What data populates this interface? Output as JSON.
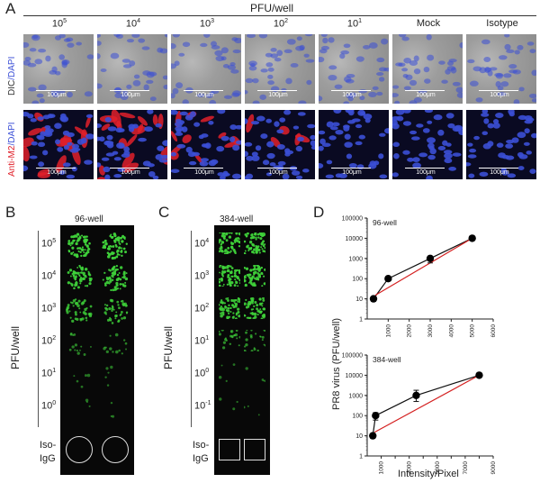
{
  "panel_a": {
    "letter": "A",
    "header": "PFU/well",
    "columns": [
      "10^5",
      "10^4",
      "10^3",
      "10^2",
      "10^1",
      "Mock",
      "Isotype"
    ],
    "columns_display": [
      {
        "base": "10",
        "exp": "5"
      },
      {
        "base": "10",
        "exp": "4"
      },
      {
        "base": "10",
        "exp": "3"
      },
      {
        "base": "10",
        "exp": "2"
      },
      {
        "base": "10",
        "exp": "1"
      },
      {
        "base": "Mock",
        "exp": ""
      },
      {
        "base": "Isotype",
        "exp": ""
      }
    ],
    "row1_label_a": "DIC",
    "row1_label_b": "/DAPI",
    "row2_label_a": "Anti-M2",
    "row2_label_b": "/DAPI",
    "scale_label": "100μm",
    "colors": {
      "dapi": "#3b4fd6",
      "m2": "#e0202a",
      "dic_bg": "#9a9a9a"
    }
  },
  "panel_b": {
    "letter": "B",
    "plate": "96-well",
    "ylabel": "PFU/well",
    "rows": [
      {
        "base": "10",
        "exp": "5"
      },
      {
        "base": "10",
        "exp": "4"
      },
      {
        "base": "10",
        "exp": "3"
      },
      {
        "base": "10",
        "exp": "2"
      },
      {
        "base": "10",
        "exp": "1"
      },
      {
        "base": "10",
        "exp": "0"
      }
    ],
    "control_a": "Iso-",
    "control_b": "IgG",
    "well_levels": [
      0.95,
      0.85,
      0.6,
      0.2,
      0.07,
      0.04
    ]
  },
  "panel_c": {
    "letter": "C",
    "plate": "384-well",
    "ylabel": "PFU/well",
    "rows": [
      {
        "base": "10",
        "exp": "4"
      },
      {
        "base": "10",
        "exp": "3"
      },
      {
        "base": "10",
        "exp": "2"
      },
      {
        "base": "10",
        "exp": "1"
      },
      {
        "base": "10",
        "exp": "0"
      },
      {
        "base": "10",
        "exp": "-1"
      }
    ],
    "control_a": "Iso-",
    "control_b": "IgG",
    "well_levels": [
      0.9,
      0.9,
      0.8,
      0.3,
      0.06,
      0.04
    ]
  },
  "panel_d": {
    "letter": "D",
    "ylabel": "PR8 virus (PFU/well)",
    "xlabel": "Intensity/Pixel"
  },
  "chart_data": [
    {
      "type": "scatter",
      "title": "96-well",
      "xlabel": "Intensity/Pixel",
      "ylabel": "PR8 virus (PFU/well)",
      "xlim": [
        0,
        6000
      ],
      "ylim": [
        1,
        100000
      ],
      "yscale": "log",
      "xticks": [
        1000,
        2000,
        3000,
        4000,
        5000,
        6000
      ],
      "yticks": [
        1,
        10,
        100,
        1000,
        10000,
        100000
      ],
      "x": [
        300,
        1000,
        3000,
        5000
      ],
      "y": [
        10,
        100,
        1000,
        10000
      ],
      "yerr_low": [
        0,
        0,
        400,
        0
      ],
      "yerr_high": [
        0,
        0,
        300,
        0
      ],
      "fit_line_color": "#d42020",
      "point_color": "#000000"
    },
    {
      "type": "scatter",
      "title": "384-well",
      "xlabel": "Intensity/Pixel",
      "ylabel": "PR8 virus (PFU/well)",
      "xlim": [
        0,
        9000
      ],
      "ylim": [
        1,
        100000
      ],
      "yscale": "log",
      "xticks": [
        1000,
        2000,
        3000,
        4000,
        5000,
        6000,
        7000,
        8000,
        9000
      ],
      "xtick_labels": [
        "1000",
        "",
        "3000",
        "",
        "5000",
        "",
        "7000",
        "",
        "9000"
      ],
      "yticks": [
        1,
        10,
        100,
        1000,
        10000,
        100000
      ],
      "x": [
        400,
        600,
        3500,
        8000
      ],
      "y": [
        10,
        100,
        1000,
        10000
      ],
      "yerr_low": [
        0,
        40,
        500,
        0
      ],
      "yerr_high": [
        0,
        40,
        800,
        0
      ],
      "fit_line_color": "#d42020",
      "point_color": "#000000"
    }
  ]
}
